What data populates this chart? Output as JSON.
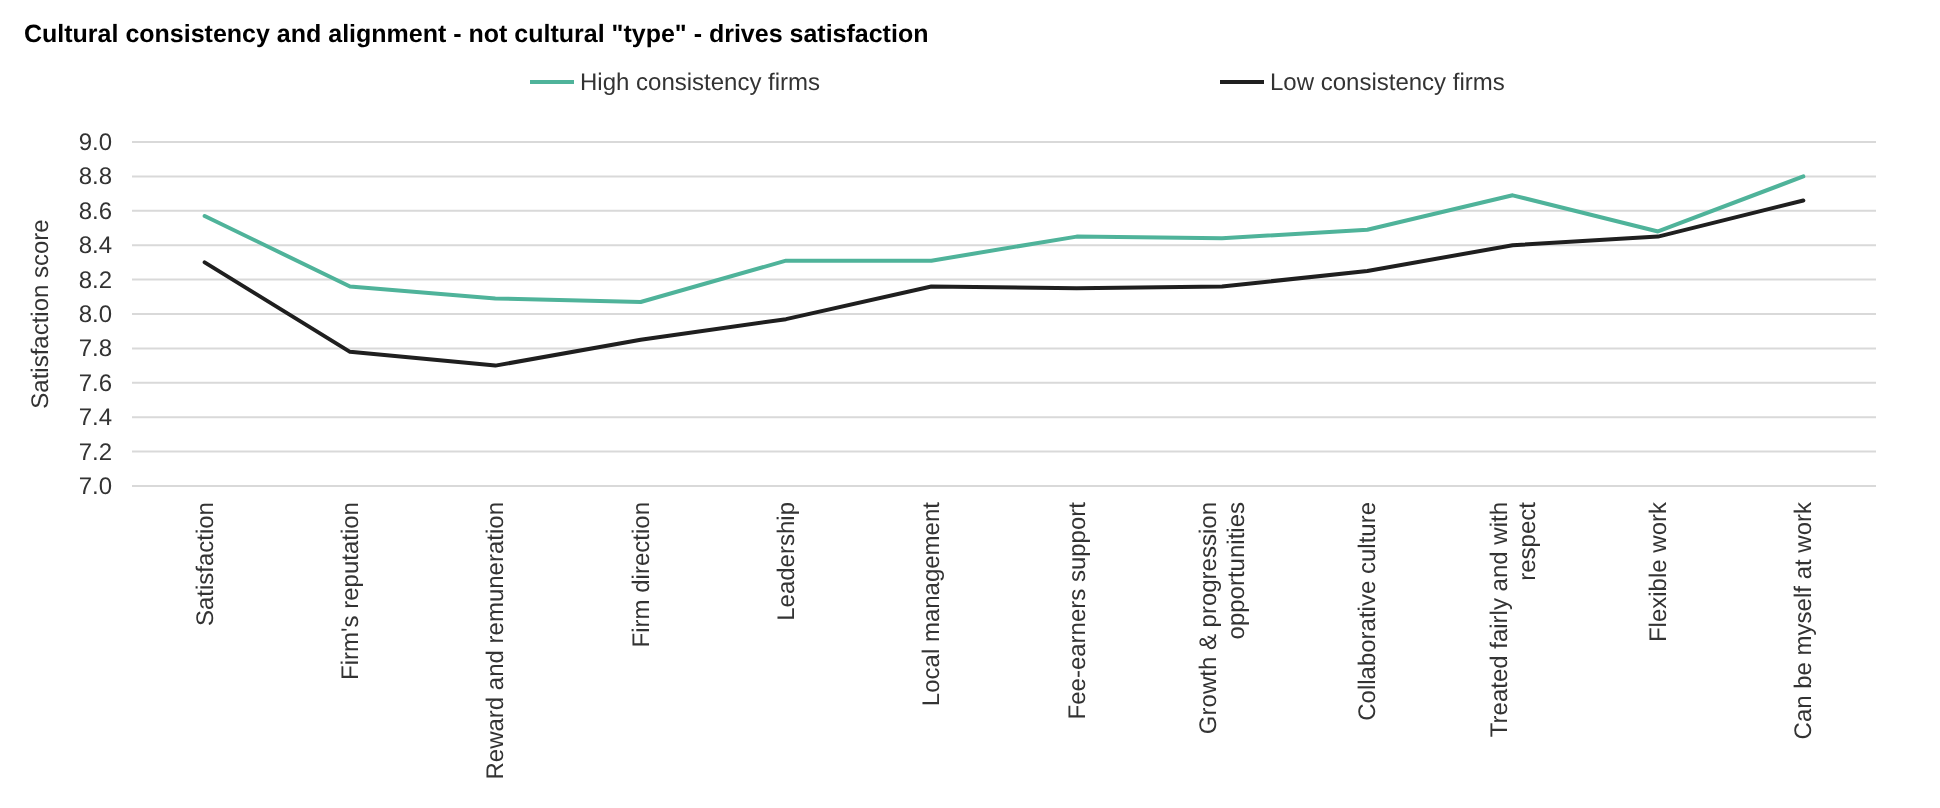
{
  "chart_data": {
    "type": "line",
    "title": "Cultural consistency and alignment - not cultural \"type\" - drives satisfaction",
    "ylabel": "Satisfaction score",
    "categories": [
      "Satisfaction",
      "Firm's reputation",
      "Reward and remuneration",
      "Firm direction",
      "Leadership",
      "Local management",
      "Fee-earners support",
      "Growth & progression opportunities",
      "Collaborative culture",
      "Treated fairly and with respect",
      "Flexible work",
      "Can be myself at work"
    ],
    "series": [
      {
        "name": "High consistency firms",
        "color": "#4fb39a",
        "values": [
          8.57,
          8.16,
          8.09,
          8.07,
          8.31,
          8.31,
          8.45,
          8.44,
          8.49,
          8.69,
          8.48,
          8.8
        ]
      },
      {
        "name": "Low consistency firms",
        "color": "#1f1f1f",
        "values": [
          8.3,
          7.78,
          7.7,
          7.85,
          7.97,
          8.16,
          8.15,
          8.16,
          8.25,
          8.4,
          8.45,
          8.66
        ]
      }
    ],
    "ylim": [
      7.0,
      9.0
    ],
    "yticks": [
      {
        "value": 7.0,
        "label": "7.0"
      },
      {
        "value": 7.2,
        "label": "7.2"
      },
      {
        "value": 7.4,
        "label": "7.4"
      },
      {
        "value": 7.6,
        "label": "7.6"
      },
      {
        "value": 7.8,
        "label": "7.8"
      },
      {
        "value": 8.0,
        "label": "8.0"
      },
      {
        "value": 8.2,
        "label": "8.2"
      },
      {
        "value": 8.4,
        "label": "8.4"
      },
      {
        "value": 8.6,
        "label": "8.6"
      },
      {
        "value": 8.8,
        "label": "8.8"
      },
      {
        "value": 9.0,
        "label": "9.0"
      }
    ],
    "grid": "y",
    "legend": "top",
    "marker": "none",
    "line_style": "solid"
  }
}
